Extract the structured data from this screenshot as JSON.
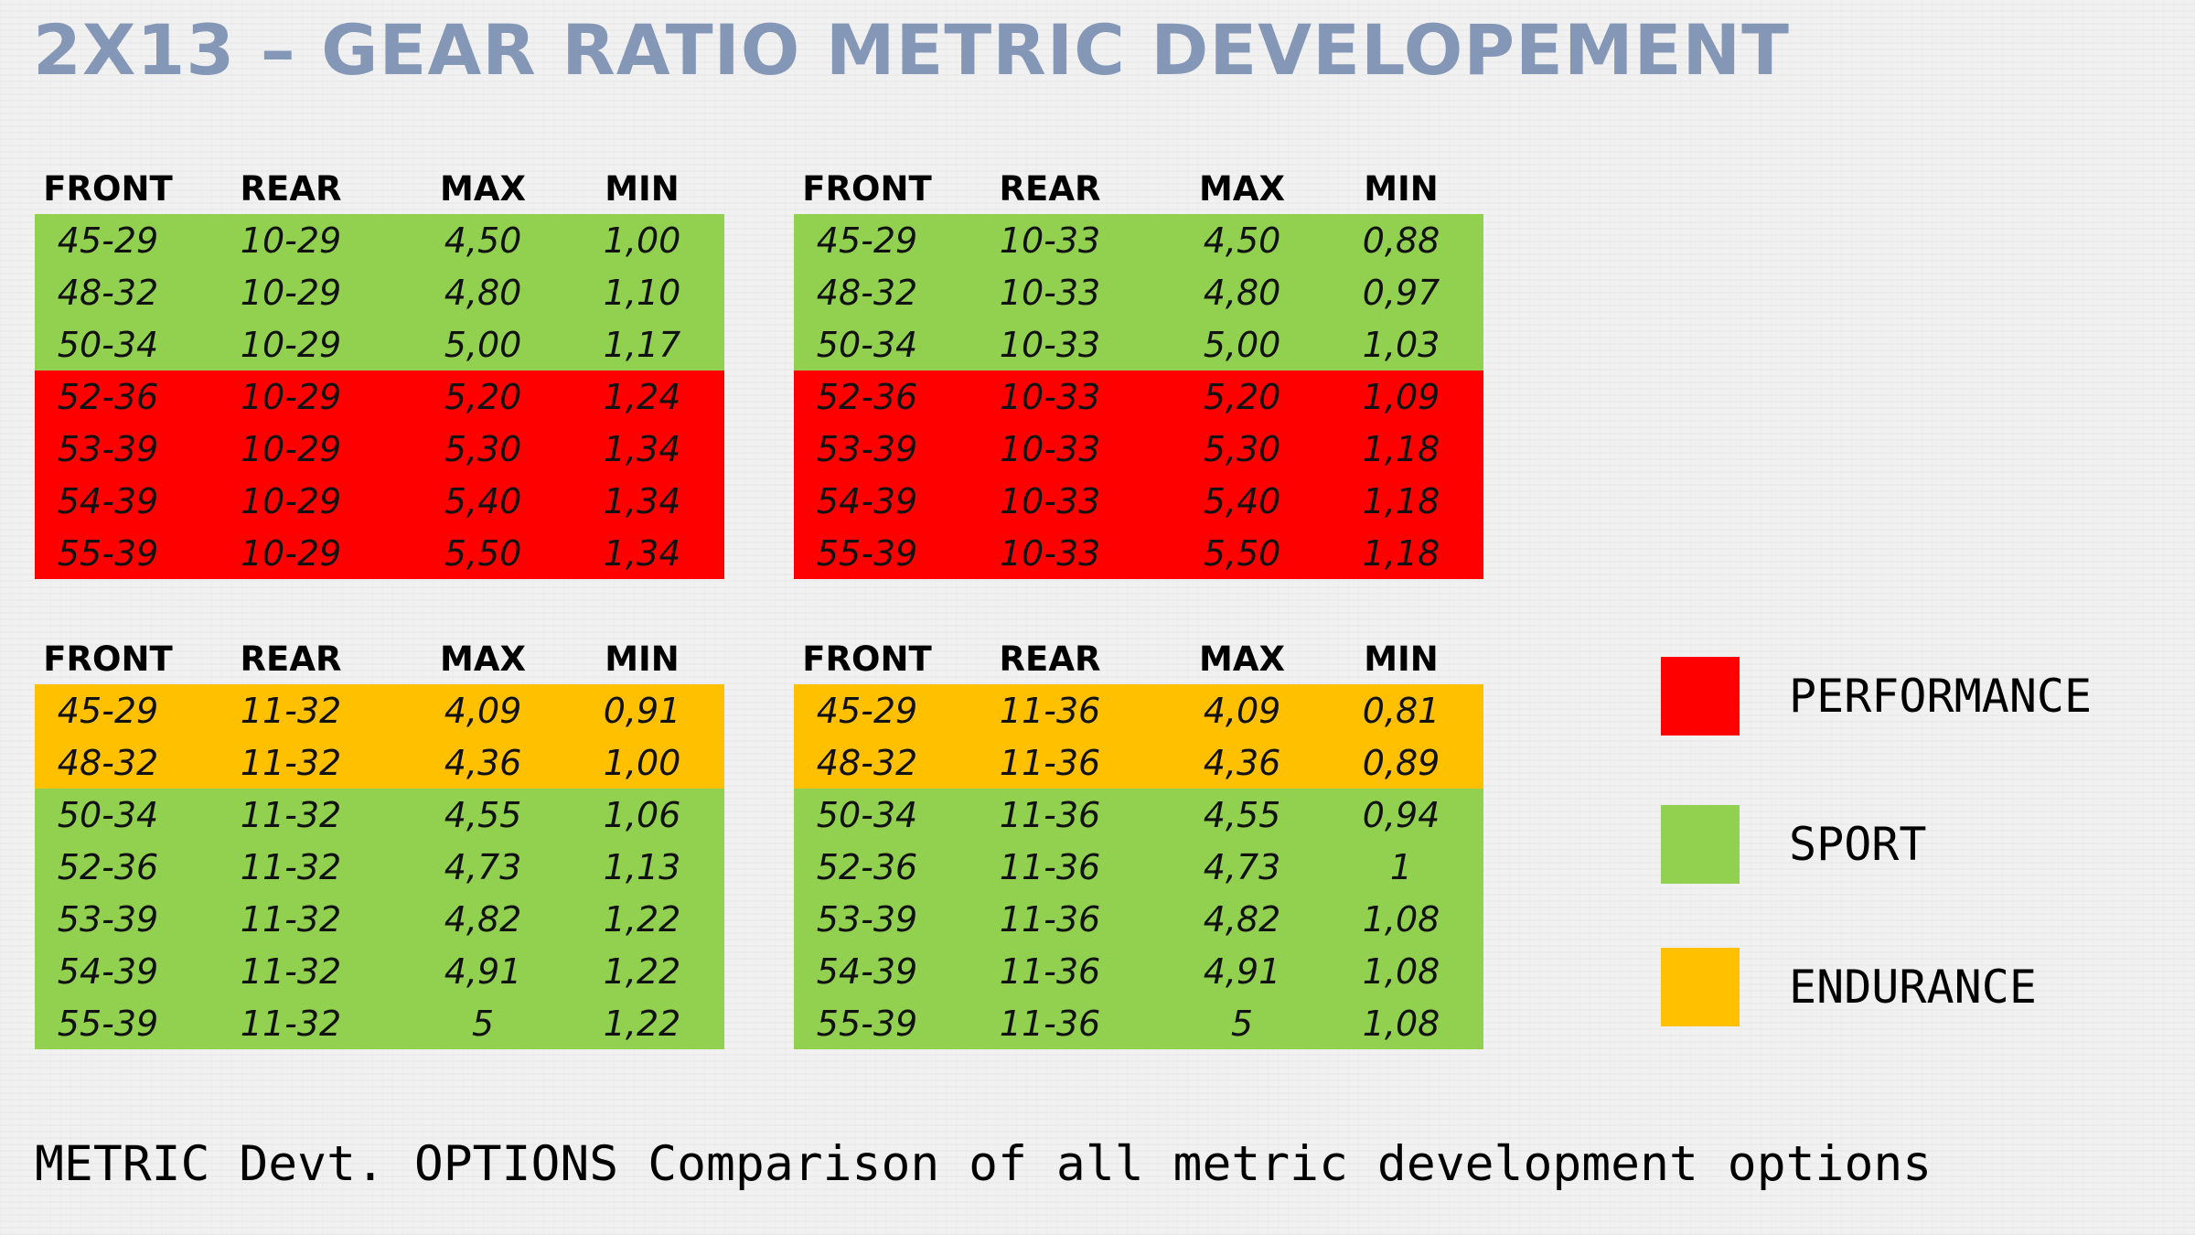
{
  "title": "2X13 – GEAR RATIO METRIC DEVELOPEMENT",
  "headers": {
    "front": "FRONT",
    "rear": "REAR",
    "max": "MAX",
    "min": "MIN"
  },
  "colors": {
    "performance": "#ff0000",
    "sport": "#92d050",
    "endurance": "#ffc000",
    "title": "#8497b6"
  },
  "tables": [
    {
      "rows": [
        {
          "front": "45-29",
          "rear": "10-29",
          "max": "4,50",
          "min": "1,00",
          "category": "sport"
        },
        {
          "front": "48-32",
          "rear": "10-29",
          "max": "4,80",
          "min": "1,10",
          "category": "sport"
        },
        {
          "front": "50-34",
          "rear": "10-29",
          "max": "5,00",
          "min": "1,17",
          "category": "sport"
        },
        {
          "front": "52-36",
          "rear": "10-29",
          "max": "5,20",
          "min": "1,24",
          "category": "performance"
        },
        {
          "front": "53-39",
          "rear": "10-29",
          "max": "5,30",
          "min": "1,34",
          "category": "performance"
        },
        {
          "front": "54-39",
          "rear": "10-29",
          "max": "5,40",
          "min": "1,34",
          "category": "performance"
        },
        {
          "front": "55-39",
          "rear": "10-29",
          "max": "5,50",
          "min": "1,34",
          "category": "performance"
        }
      ]
    },
    {
      "rows": [
        {
          "front": "45-29",
          "rear": "10-33",
          "max": "4,50",
          "min": "0,88",
          "category": "sport"
        },
        {
          "front": "48-32",
          "rear": "10-33",
          "max": "4,80",
          "min": "0,97",
          "category": "sport"
        },
        {
          "front": "50-34",
          "rear": "10-33",
          "max": "5,00",
          "min": "1,03",
          "category": "sport"
        },
        {
          "front": "52-36",
          "rear": "10-33",
          "max": "5,20",
          "min": "1,09",
          "category": "performance"
        },
        {
          "front": "53-39",
          "rear": "10-33",
          "max": "5,30",
          "min": "1,18",
          "category": "performance"
        },
        {
          "front": "54-39",
          "rear": "10-33",
          "max": "5,40",
          "min": "1,18",
          "category": "performance"
        },
        {
          "front": "55-39",
          "rear": "10-33",
          "max": "5,50",
          "min": "1,18",
          "category": "performance"
        }
      ]
    },
    {
      "rows": [
        {
          "front": "45-29",
          "rear": "11-32",
          "max": "4,09",
          "min": "0,91",
          "category": "endurance"
        },
        {
          "front": "48-32",
          "rear": "11-32",
          "max": "4,36",
          "min": "1,00",
          "category": "endurance"
        },
        {
          "front": "50-34",
          "rear": "11-32",
          "max": "4,55",
          "min": "1,06",
          "category": "sport"
        },
        {
          "front": "52-36",
          "rear": "11-32",
          "max": "4,73",
          "min": "1,13",
          "category": "sport"
        },
        {
          "front": "53-39",
          "rear": "11-32",
          "max": "4,82",
          "min": "1,22",
          "category": "sport"
        },
        {
          "front": "54-39",
          "rear": "11-32",
          "max": "4,91",
          "min": "1,22",
          "category": "sport"
        },
        {
          "front": "55-39",
          "rear": "11-32",
          "max": "5",
          "min": "1,22",
          "category": "sport"
        }
      ]
    },
    {
      "rows": [
        {
          "front": "45-29",
          "rear": "11-36",
          "max": "4,09",
          "min": "0,81",
          "category": "endurance"
        },
        {
          "front": "48-32",
          "rear": "11-36",
          "max": "4,36",
          "min": "0,89",
          "category": "endurance"
        },
        {
          "front": "50-34",
          "rear": "11-36",
          "max": "4,55",
          "min": "0,94",
          "category": "sport"
        },
        {
          "front": "52-36",
          "rear": "11-36",
          "max": "4,73",
          "min": "1",
          "category": "sport"
        },
        {
          "front": "53-39",
          "rear": "11-36",
          "max": "4,82",
          "min": "1,08",
          "category": "sport"
        },
        {
          "front": "54-39",
          "rear": "11-36",
          "max": "4,91",
          "min": "1,08",
          "category": "sport"
        },
        {
          "front": "55-39",
          "rear": "11-36",
          "max": "5",
          "min": "1,08",
          "category": "sport"
        }
      ]
    }
  ],
  "legend": [
    {
      "label": "PERFORMANCE",
      "category": "performance"
    },
    {
      "label": "SPORT",
      "category": "sport"
    },
    {
      "label": "ENDURANCE",
      "category": "endurance"
    }
  ],
  "caption": {
    "heading": "METRIC Devt. OPTIONS",
    "text": "Comparison of all metric development options"
  }
}
